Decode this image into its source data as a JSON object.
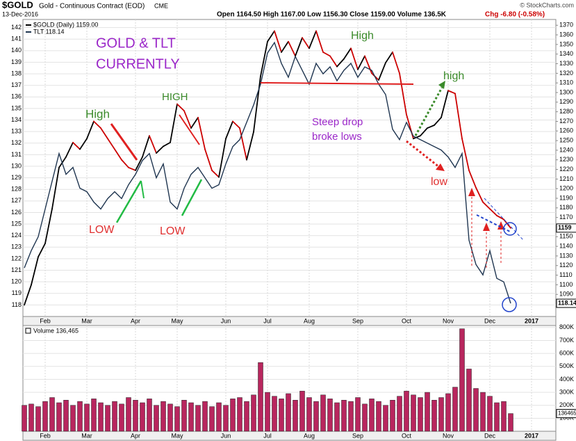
{
  "header": {
    "symbol": "$GOLD",
    "name": "Gold - Continuous Contract (EOD)",
    "exchange": "CME",
    "date": "13-Dec-2016",
    "quote": "Open 1164.50  High 1167.00  Low 1156.30  Close 1159.00  Volume 136.5K",
    "change": "Chg -6.80 (-0.58%)",
    "credit": "© StockCharts.com"
  },
  "chart_data": [
    {
      "type": "line",
      "categories": [
        null,
        null,
        null,
        "Feb",
        null,
        null,
        null,
        null,
        null,
        "Mar",
        null,
        null,
        null,
        null,
        null,
        null,
        "Apr",
        null,
        null,
        null,
        null,
        null,
        "May",
        null,
        null,
        null,
        null,
        null,
        null,
        "Jun",
        null,
        null,
        null,
        null,
        null,
        "Jul",
        null,
        null,
        null,
        null,
        null,
        "Aug",
        null,
        null,
        null,
        null,
        null,
        null,
        "Sep",
        null,
        null,
        null,
        null,
        null,
        null,
        "Oct",
        null,
        null,
        null,
        null,
        null,
        "Nov",
        null,
        null,
        null,
        null,
        null,
        "Dec",
        null,
        null,
        null,
        null,
        null,
        "2017",
        null,
        null,
        null
      ],
      "series": [
        {
          "name": "$GOLD (Daily) 1159.00",
          "color": "#000000",
          "down_color": "#cc0000",
          "axis": "y2",
          "values": [
            1079,
            1100,
            1129,
            1143,
            1179,
            1222,
            1233,
            1248,
            1241,
            1252,
            1270,
            1263,
            1252,
            1241,
            1230,
            1222,
            1219,
            1233,
            1255,
            1237,
            1244,
            1248,
            1288,
            1281,
            1263,
            1274,
            1241,
            1219,
            1212,
            1252,
            1270,
            1263,
            1230,
            1259,
            1317,
            1353,
            1364,
            1342,
            1353,
            1338,
            1357,
            1346,
            1364,
            1342,
            1338,
            1327,
            1335,
            1346,
            1324,
            1338,
            1320,
            1313,
            1331,
            1342,
            1320,
            1277,
            1252,
            1255,
            1263,
            1266,
            1274,
            1302,
            1299,
            1252,
            1219,
            1201,
            1186,
            1179,
            1172,
            1168,
            1159,
            null,
            null,
            null,
            null,
            null,
            null
          ]
        },
        {
          "name": "TLT 118.14",
          "color": "#1f3550",
          "values": [
            121.2,
            122.7,
            123.9,
            126.3,
            128.7,
            131.1,
            129.3,
            129.9,
            128.1,
            127.8,
            126.9,
            126.3,
            127.2,
            127.8,
            127.2,
            128.4,
            129.3,
            130.5,
            131.1,
            129.0,
            130.2,
            126.9,
            126.3,
            128.1,
            129.3,
            129.9,
            129.0,
            128.1,
            128.4,
            130.2,
            131.7,
            132.3,
            133.8,
            135.3,
            137.1,
            139.8,
            140.7,
            138.9,
            137.7,
            139.5,
            138.3,
            137.1,
            138.9,
            138.0,
            138.6,
            137.4,
            138.3,
            138.9,
            137.7,
            138.6,
            138.3,
            137.1,
            136.2,
            133.2,
            132.3,
            133.8,
            132.6,
            132.3,
            132.0,
            131.7,
            131.4,
            130.8,
            129.9,
            131.1,
            123.6,
            121.5,
            120.6,
            122.7,
            120.3,
            120.0,
            118.14,
            null,
            null,
            null,
            null,
            null,
            null
          ]
        }
      ],
      "ylim": [
        117,
        142.7
      ],
      "yticks": [
        118,
        119,
        120,
        121,
        122,
        123,
        124,
        125,
        126,
        127,
        128,
        129,
        130,
        131,
        132,
        133,
        134,
        135,
        136,
        137,
        138,
        139,
        140,
        141,
        142
      ],
      "y2lim": [
        1067,
        1376
      ],
      "y2ticks": [
        1090,
        1100,
        1110,
        1120,
        1130,
        1140,
        1150,
        1160,
        1170,
        1180,
        1190,
        1200,
        1210,
        1220,
        1230,
        1240,
        1250,
        1260,
        1270,
        1280,
        1290,
        1300,
        1310,
        1320,
        1330,
        1340,
        1350,
        1360,
        1370
      ],
      "grid": true,
      "annotations": [
        {
          "text": "GOLD & TLT",
          "color": "#9b27c9"
        },
        {
          "text": "CURRENTLY",
          "color": "#9b27c9"
        },
        {
          "text": "High",
          "color": "#3a8a2a"
        },
        {
          "text": "HIGH",
          "color": "#3a8a2a"
        },
        {
          "text": "LOW",
          "color": "#e03030"
        },
        {
          "text": "LOW",
          "color": "#e03030"
        },
        {
          "text": "High",
          "color": "#3a8a2a"
        },
        {
          "text": "Steep drop",
          "color": "#9b27c9"
        },
        {
          "text": "broke lows",
          "color": "#9b27c9"
        },
        {
          "text": "high",
          "color": "#3a8a2a"
        },
        {
          "text": "low",
          "color": "#e03030"
        }
      ]
    },
    {
      "type": "bar",
      "categories": [
        null,
        null,
        null,
        "Feb",
        null,
        null,
        null,
        null,
        null,
        "Mar",
        null,
        null,
        null,
        null,
        null,
        null,
        "Apr",
        null,
        null,
        null,
        null,
        null,
        "May",
        null,
        null,
        null,
        null,
        null,
        null,
        "Jun",
        null,
        null,
        null,
        null,
        null,
        "Jul",
        null,
        null,
        null,
        null,
        null,
        "Aug",
        null,
        null,
        null,
        null,
        null,
        null,
        "Sep",
        null,
        null,
        null,
        null,
        null,
        null,
        "Oct",
        null,
        null,
        null,
        null,
        null,
        "Nov",
        null,
        null,
        null,
        null,
        null,
        "Dec",
        null,
        null,
        null,
        null,
        null,
        "2017",
        null,
        null,
        null
      ],
      "series": [
        {
          "name": "Volume 136,465",
          "color": "#b8265e",
          "values": [
            200000,
            210000,
            190000,
            230000,
            260000,
            220000,
            240000,
            200000,
            230000,
            210000,
            250000,
            220000,
            200000,
            230000,
            210000,
            260000,
            240000,
            220000,
            250000,
            200000,
            230000,
            210000,
            190000,
            240000,
            220000,
            200000,
            230000,
            190000,
            220000,
            200000,
            250000,
            260000,
            230000,
            280000,
            530000,
            300000,
            270000,
            250000,
            290000,
            240000,
            310000,
            260000,
            230000,
            280000,
            250000,
            220000,
            240000,
            230000,
            260000,
            210000,
            250000,
            230000,
            200000,
            240000,
            270000,
            310000,
            280000,
            260000,
            300000,
            240000,
            260000,
            290000,
            340000,
            790000,
            480000,
            330000,
            300000,
            270000,
            220000,
            230000,
            136465,
            null,
            null,
            null,
            null,
            null,
            null
          ]
        }
      ],
      "ylim": [
        0,
        815000
      ],
      "yticks": [
        {
          "value": 100000,
          "label": "100K"
        },
        {
          "value": 200000,
          "label": "200K"
        },
        {
          "value": 300000,
          "label": "300K"
        },
        {
          "value": 400000,
          "label": "400K"
        },
        {
          "value": 500000,
          "label": "500K"
        },
        {
          "value": 600000,
          "label": "600K"
        },
        {
          "value": 700000,
          "label": "700K"
        },
        {
          "value": 800000,
          "label": "800K"
        }
      ],
      "grid": true
    }
  ]
}
